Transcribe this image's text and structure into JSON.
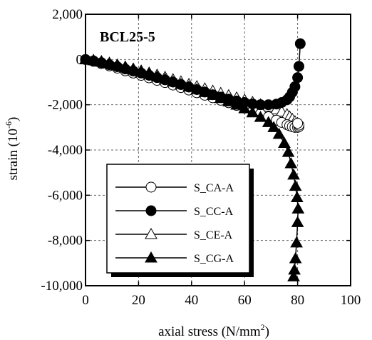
{
  "chart_data": {
    "type": "line",
    "annotation": "BCL25-5",
    "xlabel": "axial stress (N/mm",
    "xlabel_sup": "2",
    "xlabel_end": ")",
    "ylabel": "strain (10",
    "ylabel_sup": "-6",
    "ylabel_end": ")",
    "xlim": [
      0,
      100
    ],
    "ylim": [
      -10000,
      2000
    ],
    "x_ticks": [
      0,
      20,
      40,
      60,
      80,
      100
    ],
    "x_tick_labels": [
      "0",
      "20",
      "40",
      "60",
      "80",
      "100"
    ],
    "y_ticks": [
      2000,
      0,
      -2000,
      -4000,
      -6000,
      -8000,
      -10000
    ],
    "y_tick_labels": [
      "2,000",
      "0",
      "-2,000",
      "-4,000",
      "-6,000",
      "-8,000",
      "-10,000"
    ],
    "grid": true,
    "legend_position": "bottom-left",
    "series": [
      {
        "name": "S_CA-A",
        "marker": "circle-open",
        "x": [
          0,
          3,
          6,
          9,
          12,
          15,
          18,
          21,
          24,
          27,
          30,
          33,
          36,
          39,
          42,
          45,
          48,
          51,
          54,
          57,
          60,
          63,
          66,
          69,
          72,
          74,
          76,
          77,
          78,
          79,
          80,
          80.5,
          80.5,
          80
        ],
        "y": [
          0,
          -80,
          -180,
          -280,
          -380,
          -500,
          -600,
          -700,
          -810,
          -920,
          -1020,
          -1130,
          -1240,
          -1350,
          -1470,
          -1580,
          -1690,
          -1800,
          -1910,
          -2030,
          -2150,
          -2270,
          -2400,
          -2530,
          -2680,
          -2780,
          -2880,
          -2930,
          -2970,
          -3000,
          -3000,
          -2970,
          -2900,
          -2820
        ]
      },
      {
        "name": "S_CC-A",
        "marker": "circle-filled",
        "x": [
          0,
          3,
          6,
          9,
          12,
          15,
          18,
          21,
          24,
          27,
          30,
          33,
          36,
          39,
          42,
          45,
          48,
          51,
          54,
          57,
          60,
          63,
          66,
          69,
          72,
          74,
          76,
          77,
          78,
          79,
          80,
          80.5,
          81
        ],
        "y": [
          0,
          -60,
          -140,
          -230,
          -320,
          -420,
          -510,
          -600,
          -700,
          -800,
          -900,
          -1000,
          -1110,
          -1220,
          -1330,
          -1440,
          -1560,
          -1660,
          -1750,
          -1830,
          -1900,
          -1960,
          -2000,
          -2000,
          -1970,
          -1900,
          -1780,
          -1650,
          -1450,
          -1200,
          -800,
          -300,
          700
        ]
      },
      {
        "name": "S_CE-A",
        "marker": "triangle-open",
        "x": [
          0,
          3,
          6,
          9,
          12,
          15,
          18,
          21,
          24,
          27,
          30,
          33,
          36,
          39,
          42,
          45,
          48,
          51,
          54,
          57,
          60,
          63,
          66,
          69,
          72,
          74,
          76,
          77,
          78,
          79,
          80
        ],
        "y": [
          0,
          -30,
          -80,
          -150,
          -230,
          -320,
          -410,
          -500,
          -590,
          -680,
          -780,
          -880,
          -980,
          -1090,
          -1190,
          -1290,
          -1390,
          -1490,
          -1590,
          -1690,
          -1790,
          -1890,
          -1990,
          -2090,
          -2210,
          -2310,
          -2430,
          -2530,
          -2640,
          -2740,
          -2820
        ]
      },
      {
        "name": "S_CG-A",
        "marker": "triangle-filled",
        "x": [
          0,
          3,
          6,
          9,
          12,
          15,
          18,
          21,
          24,
          27,
          30,
          33,
          36,
          39,
          42,
          45,
          48,
          51,
          54,
          57,
          60,
          63,
          66,
          69,
          71,
          73,
          75,
          76.5,
          77.5,
          78.5,
          79.2,
          79.8,
          80.2,
          80,
          79.6,
          79.2,
          78.8,
          78.5
        ],
        "y": [
          0,
          -50,
          -110,
          -180,
          -260,
          -350,
          -450,
          -550,
          -650,
          -760,
          -870,
          -980,
          -1090,
          -1200,
          -1320,
          -1450,
          -1580,
          -1720,
          -1860,
          -2010,
          -2170,
          -2350,
          -2550,
          -2780,
          -3000,
          -3300,
          -3700,
          -4100,
          -4600,
          -5100,
          -5600,
          -6100,
          -6600,
          -7200,
          -8100,
          -8800,
          -9300,
          -9600
        ]
      }
    ]
  }
}
